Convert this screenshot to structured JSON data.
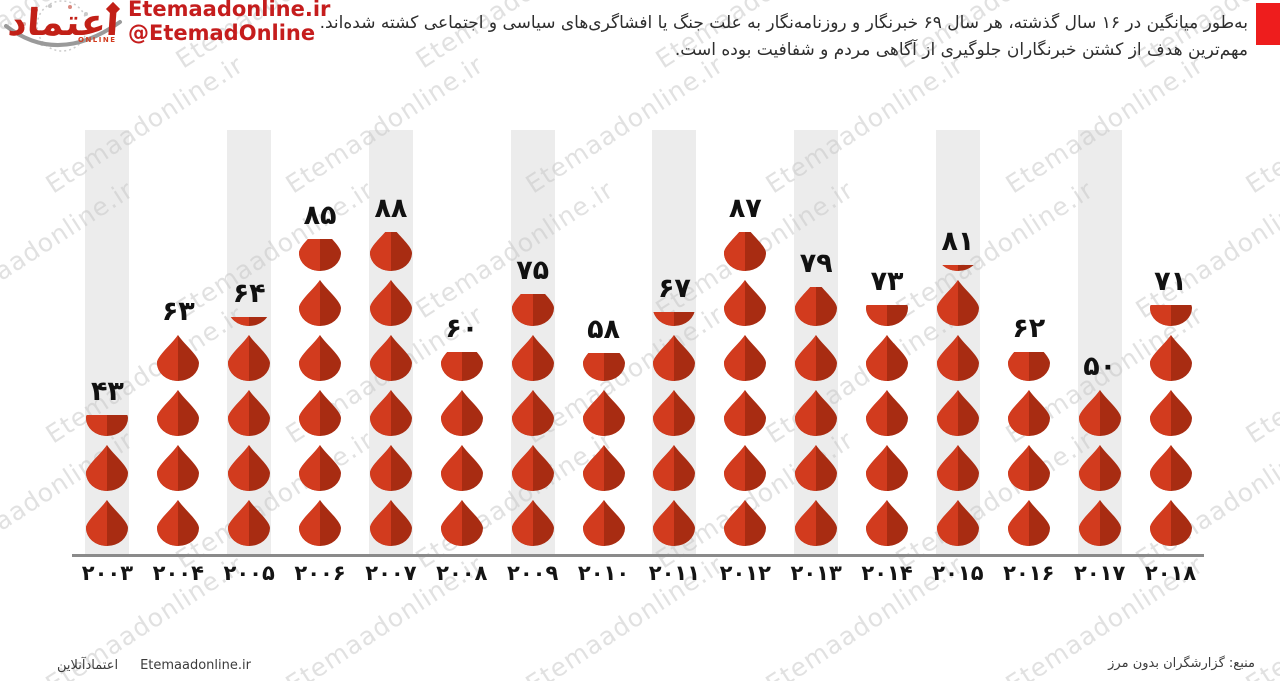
{
  "header": {
    "logo": {
      "brand_calligraphy": "اعتماد",
      "online_label": "ONLINE",
      "site_url": "Etemaadonline.ir",
      "social_handle": "@EtemadOnline"
    },
    "description": "به‌طور میانگین در ۱۶ سال گذشته، هر سال ۶۹ خبرنگار و روزنامه‌نگار به علت جنگ یا افشاگری‌های سیاسی و اجتماعی کشته شده‌اند. مهم‌ترین هدف از کشتن خبرنگاران جلوگیری از آگاهی مردم و شفافیت بوده است."
  },
  "watermark": {
    "text": "Etemaadonline.ir"
  },
  "chart_data": {
    "type": "bar",
    "variant": "pictogram — stacked blood-drop icons, one drop ≈ 16 journalists killed",
    "title": "",
    "xlabel": "",
    "ylabel": "",
    "categories": [
      "2003",
      "2004",
      "2005",
      "2006",
      "2007",
      "2008",
      "2009",
      "2010",
      "2011",
      "2012",
      "2013",
      "2014",
      "2015",
      "2016",
      "2017",
      "2018"
    ],
    "categories_fa": [
      "۲۰۰۳",
      "۲۰۰۴",
      "۲۰۰۵",
      "۲۰۰۶",
      "۲۰۰۷",
      "۲۰۰۸",
      "۲۰۰۹",
      "۲۰۱۰",
      "۲۰۱۱",
      "۲۰۱۲",
      "۲۰۱۳",
      "۲۰۱۴",
      "۲۰۱۵",
      "۲۰۱۶",
      "۲۰۱۷",
      "۲۰۱۸"
    ],
    "values": [
      43,
      63,
      64,
      85,
      88,
      60,
      75,
      58,
      67,
      87,
      79,
      73,
      81,
      62,
      50,
      71
    ],
    "values_fa": [
      "۴۳",
      "۶۳",
      "۶۴",
      "۸۵",
      "۸۸",
      "۶۰",
      "۷۵",
      "۵۸",
      "۶۷",
      "۸۷",
      "۷۹",
      "۷۳",
      "۸۱",
      "۶۲",
      "۵۰",
      "۷۱"
    ],
    "drops": [
      {
        "full": 2,
        "partial": 0.45
      },
      {
        "full": 4,
        "partial": 0
      },
      {
        "full": 4,
        "partial": 0.2
      },
      {
        "full": 5,
        "partial": 0.7
      },
      {
        "full": 5,
        "partial": 0.85
      },
      {
        "full": 3,
        "partial": 0.62
      },
      {
        "full": 4,
        "partial": 0.7
      },
      {
        "full": 3,
        "partial": 0.6
      },
      {
        "full": 4,
        "partial": 0.3
      },
      {
        "full": 5,
        "partial": 0.85
      },
      {
        "full": 4,
        "partial": 0.85
      },
      {
        "full": 4,
        "partial": 0.45
      },
      {
        "full": 5,
        "partial": 0.13
      },
      {
        "full": 3,
        "partial": 0.62
      },
      {
        "full": 3,
        "partial": 0
      },
      {
        "full": 4,
        "partial": 0.45
      }
    ],
    "shaded_columns": [
      "2003",
      "2005",
      "2007",
      "2009",
      "2011",
      "2013",
      "2015",
      "2017"
    ],
    "legend": "none",
    "grid": "off",
    "colors": {
      "drop_light": "#d23b1e",
      "drop_dark": "#a82c12",
      "column_shade": "#ececec",
      "axis_line": "#8a8a8a",
      "label": "#111111",
      "accent_red": "#ee1d1d",
      "brand_red": "#c51d1d"
    }
  },
  "footer": {
    "left_fa": "اعتمادآنلاین",
    "left_en": "Etemaadonline.ir",
    "source_fa": "منبع: گزارشگران بدون مرز"
  }
}
